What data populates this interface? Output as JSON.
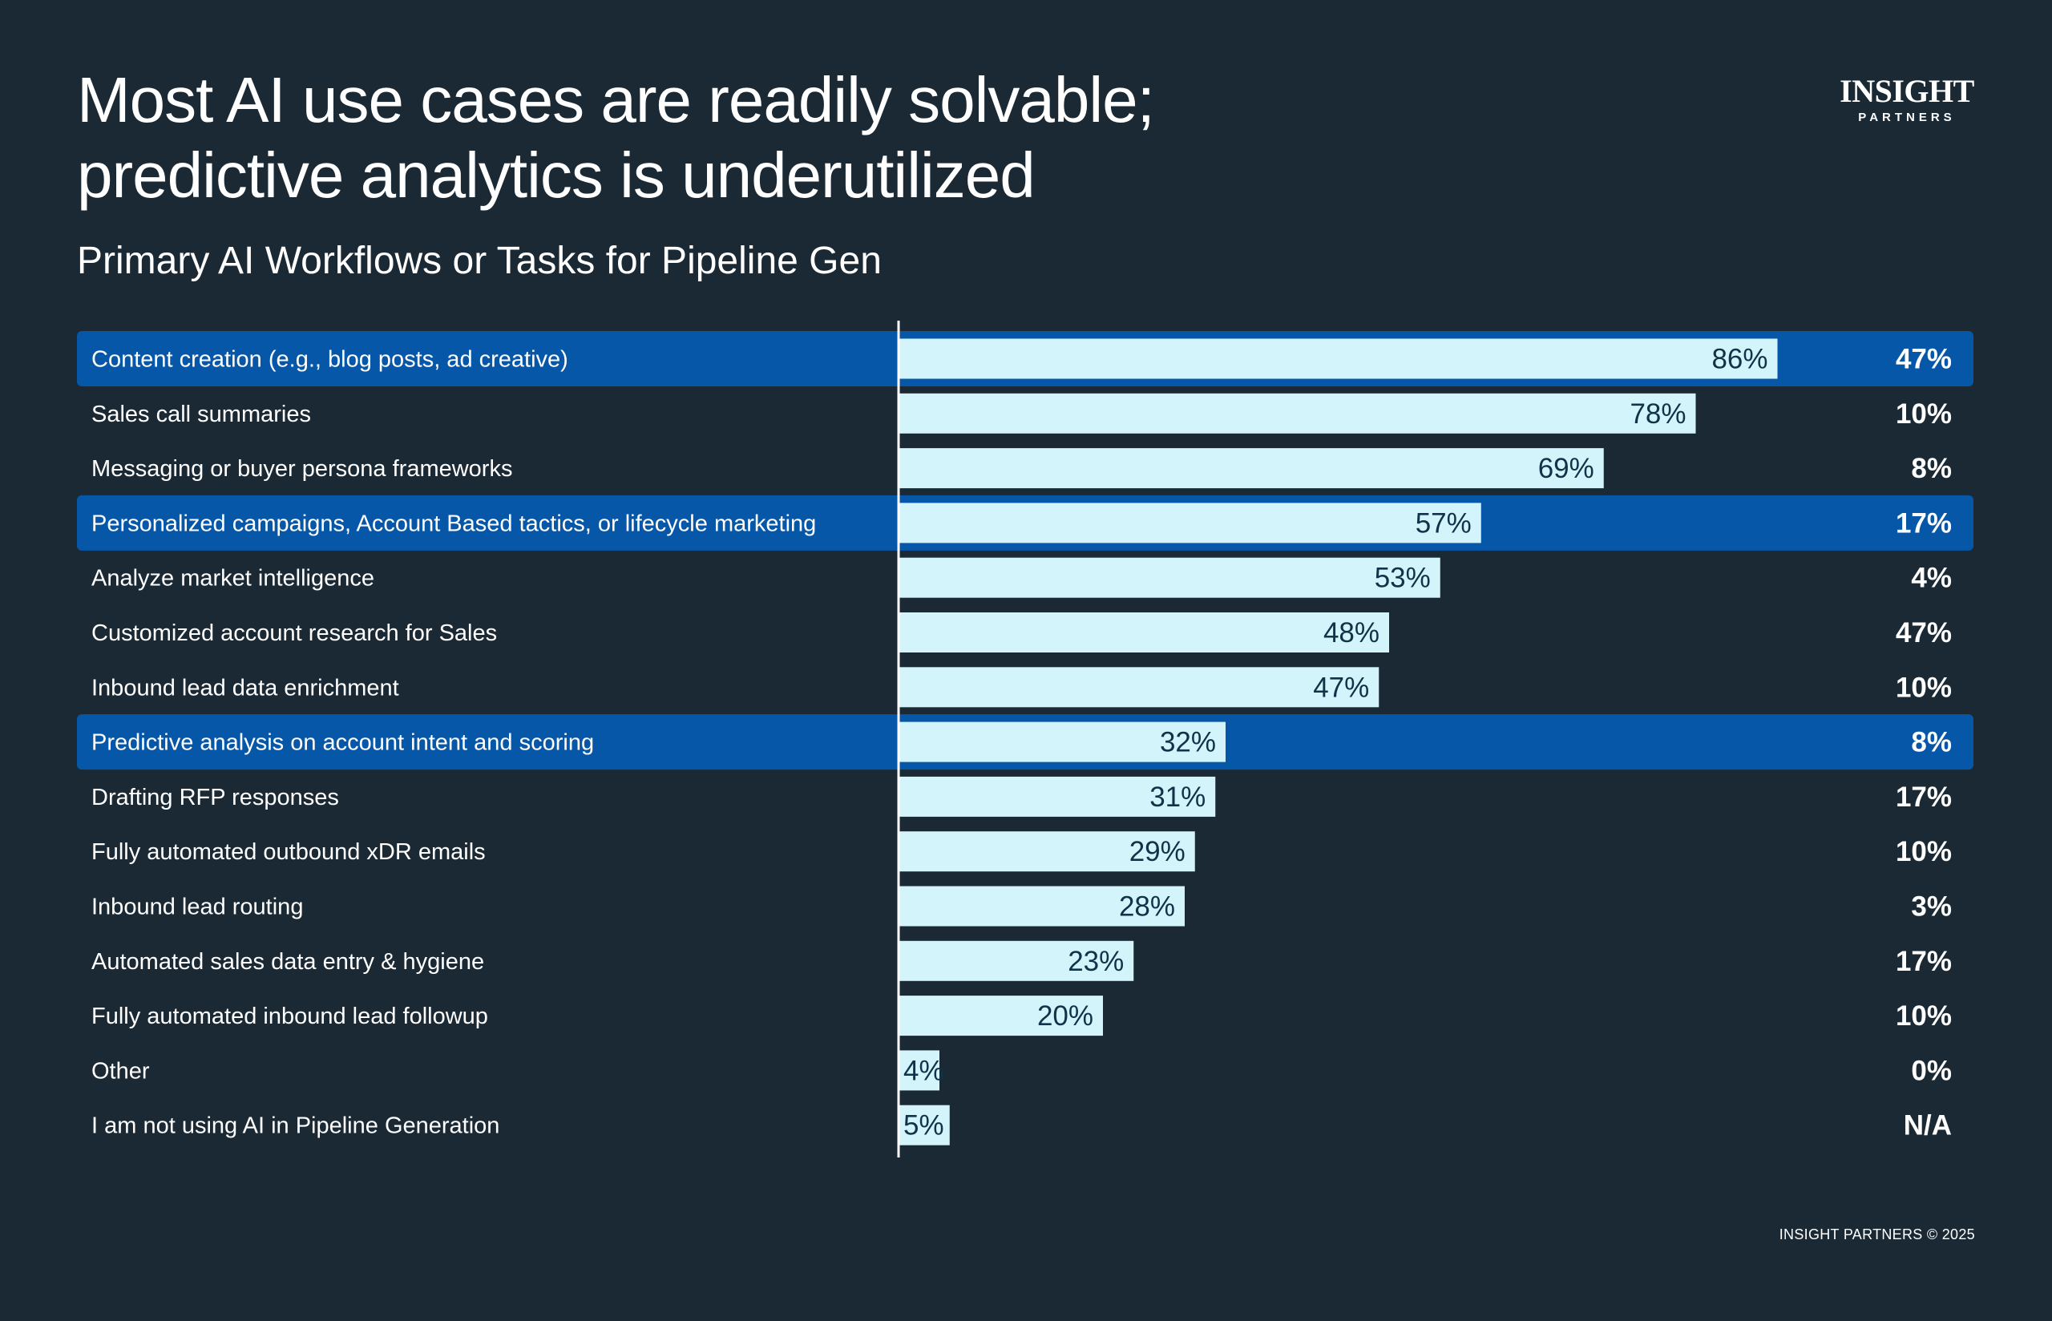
{
  "header": {
    "title_line1": "Most AI use cases are readily solvable;",
    "title_line2": "predictive analytics is underutilized",
    "subtitle": "Primary AI Workflows or Tasks for Pipeline Gen"
  },
  "logo": {
    "main": "INSIGHT",
    "sub": "PARTNERS"
  },
  "footer": {
    "copyright": "INSIGHT PARTNERS © 2025"
  },
  "colors": {
    "background": "#1a2934",
    "highlight_row": "#0757a8",
    "bar_fill": "#d4f4fc",
    "bar_label": "#0f3348",
    "text": "#ffffff"
  },
  "chart_data": {
    "type": "bar",
    "orientation": "horizontal",
    "title": "Primary AI Workflows or Tasks for Pipeline Gen",
    "xlim": [
      0,
      100
    ],
    "categories": [
      "Content creation (e.g., blog posts, ad creative)",
      "Sales call summaries",
      "Messaging or buyer persona frameworks",
      "Personalized campaigns, Account Based tactics, or lifecycle marketing",
      "Analyze market intelligence",
      "Customized account research for Sales",
      "Inbound lead data enrichment",
      "Predictive analysis on account intent and scoring",
      "Drafting RFP responses",
      "Fully automated outbound xDR emails",
      "Inbound lead routing",
      "Automated sales data entry & hygiene",
      "Fully automated inbound lead followup",
      "Other",
      "I am not using AI in Pipeline Generation"
    ],
    "values": [
      86,
      78,
      69,
      57,
      53,
      48,
      47,
      32,
      31,
      29,
      28,
      23,
      20,
      4,
      5
    ],
    "bar_labels": [
      "86%",
      "78%",
      "69%",
      "57%",
      "53%",
      "48%",
      "47%",
      "32%",
      "31%",
      "29%",
      "28%",
      "23%",
      "20%",
      "4%",
      "5%"
    ],
    "right_labels": [
      "47%",
      "10%",
      "8%",
      "17%",
      "4%",
      "47%",
      "10%",
      "8%",
      "17%",
      "10%",
      "3%",
      "17%",
      "10%",
      "0%",
      "N/A"
    ],
    "highlighted": [
      true,
      false,
      false,
      true,
      false,
      false,
      false,
      true,
      false,
      false,
      false,
      false,
      false,
      false,
      false
    ]
  }
}
